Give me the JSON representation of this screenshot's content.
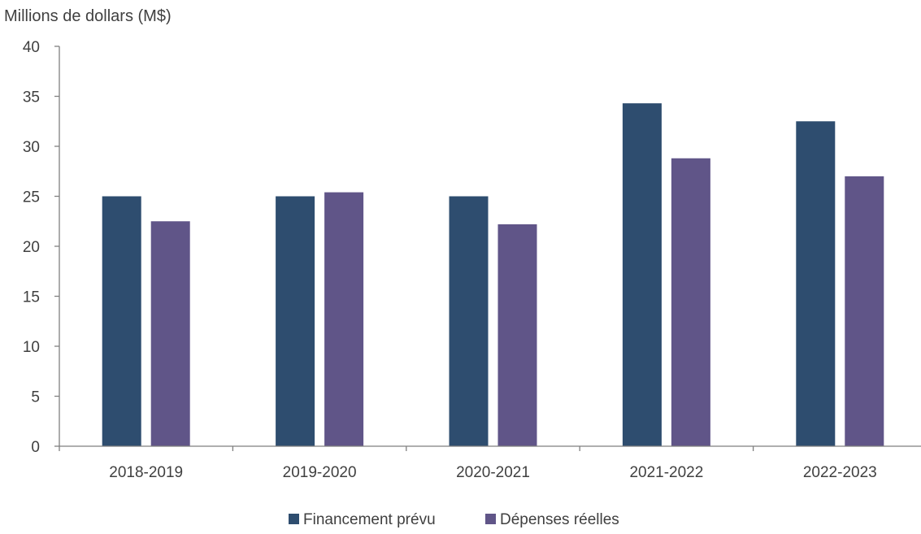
{
  "chart_data": {
    "type": "bar",
    "title": "",
    "xlabel": "",
    "ylabel": "Millions de dollars (M$)",
    "categories": [
      "2018-2019",
      "2019-2020",
      "2020-2021",
      "2021-2022",
      "2022-2023"
    ],
    "ylim": [
      0,
      40
    ],
    "yticks": [
      0,
      5,
      10,
      15,
      20,
      25,
      30,
      35,
      40
    ],
    "grid": false,
    "legend_position": "bottom",
    "series": [
      {
        "name": "Financement prévu",
        "color": "#2e4d6f",
        "values": [
          25.0,
          25.0,
          25.0,
          34.3,
          32.5
        ]
      },
      {
        "name": "Dépenses réelles",
        "color": "#605588",
        "values": [
          22.5,
          25.4,
          22.2,
          28.8,
          27.0
        ]
      }
    ]
  }
}
